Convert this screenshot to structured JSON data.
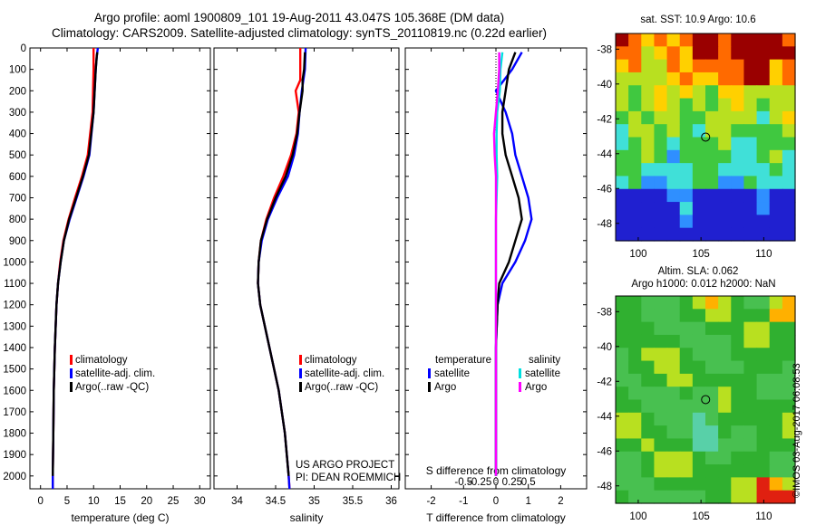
{
  "header": {
    "line1": "Argo profile: aoml 1900809_101 19-Aug-2011 43.047S 105.368E (DM data)",
    "line2": "Climatology: CARS2009. Satellite-adjusted climatology: synTS_20110819.nc (0.22d earlier)"
  },
  "colors": {
    "climatology": "#ff0000",
    "satellite": "#0000ff",
    "argo": "#000000",
    "sal_satellite": "#00e0e0",
    "sal_argo": "#ff00ff"
  },
  "depth_axis": {
    "ticks": [
      0,
      100,
      200,
      300,
      400,
      500,
      600,
      700,
      800,
      900,
      1000,
      1100,
      1200,
      1300,
      1400,
      1500,
      1600,
      1700,
      1800,
      1900,
      2000
    ],
    "tick_labels": [
      "0",
      "100",
      "200",
      "300",
      "400",
      "500",
      "600",
      "700",
      "800",
      "900",
      "1000",
      "1100",
      "1200",
      "1300",
      "1400",
      "1500",
      "1600",
      "1700",
      "1800",
      "1900",
      "2000"
    ],
    "range": [
      0,
      2060
    ]
  },
  "chart_data": [
    {
      "type": "line",
      "xlabel": "temperature (deg C)",
      "xlim": [
        -2,
        32
      ],
      "xticks": [
        0,
        5,
        10,
        15,
        20,
        25,
        30
      ],
      "xtick_labels": [
        "0",
        "5",
        "10",
        "15",
        "20",
        "25",
        "30"
      ],
      "legend": [
        "climatology",
        "satellite-adj. clim.",
        "Argo(..raw -QC)"
      ],
      "series": [
        {
          "name": "climatology",
          "y": [
            0,
            40,
            100,
            300,
            500,
            600,
            700,
            800,
            900,
            1000,
            1100,
            1200,
            1400,
            1600,
            1800,
            2000,
            2060
          ],
          "x": [
            10.0,
            10.0,
            10.0,
            9.8,
            8.9,
            7.8,
            6.5,
            5.3,
            4.3,
            3.7,
            3.3,
            3.0,
            2.7,
            2.5,
            2.4,
            2.3,
            2.3
          ]
        },
        {
          "name": "satellite-adj. clim.",
          "y": [
            0,
            40,
            100,
            300,
            500,
            600,
            700,
            800,
            900,
            1000,
            1100,
            1200,
            1400,
            1600,
            1800,
            2000,
            2060
          ],
          "x": [
            10.8,
            10.6,
            10.4,
            10.0,
            9.2,
            8.1,
            6.8,
            5.5,
            4.4,
            3.8,
            3.3,
            3.0,
            2.7,
            2.5,
            2.4,
            2.3,
            2.3
          ]
        },
        {
          "name": "Argo(..raw -QC)",
          "y": [
            20,
            40,
            100,
            300,
            500,
            600,
            700,
            800,
            900,
            1000,
            1100,
            1200,
            1400,
            1600,
            1800,
            2000
          ],
          "x": [
            10.7,
            10.6,
            10.4,
            10.0,
            9.1,
            8.0,
            6.7,
            5.4,
            4.4,
            3.8,
            3.3,
            3.0,
            2.7,
            2.5,
            2.4,
            2.3
          ]
        }
      ]
    },
    {
      "type": "line",
      "xlabel": "salinity",
      "xlim": [
        33.7,
        36.1
      ],
      "xticks": [
        34,
        34.5,
        35,
        35.5,
        36
      ],
      "xtick_labels": [
        "34",
        "34.5",
        "35",
        "35.5",
        "36"
      ],
      "legend": [
        "climatology",
        "satellite-adj. clim.",
        "Argo(..raw -QC)"
      ],
      "series": [
        {
          "name": "climatology",
          "y": [
            0,
            100,
            150,
            200,
            300,
            400,
            500,
            600,
            700,
            800,
            900,
            1000,
            1100,
            1200,
            1400,
            1600,
            1800,
            2000,
            2060
          ],
          "x": [
            34.82,
            34.82,
            34.82,
            34.76,
            34.8,
            34.77,
            34.7,
            34.6,
            34.48,
            34.38,
            34.31,
            34.28,
            34.27,
            34.3,
            34.42,
            34.54,
            34.62,
            34.67,
            34.68
          ]
        },
        {
          "name": "satellite-adj. clim.",
          "y": [
            0,
            100,
            150,
            200,
            300,
            400,
            500,
            600,
            700,
            800,
            900,
            1000,
            1100,
            1200,
            1400,
            1600,
            1800,
            2000,
            2060
          ],
          "x": [
            34.89,
            34.88,
            34.86,
            34.84,
            34.81,
            34.79,
            34.74,
            34.66,
            34.52,
            34.4,
            34.32,
            34.28,
            34.27,
            34.3,
            34.42,
            34.54,
            34.62,
            34.67,
            34.68
          ]
        },
        {
          "name": "Argo(..raw -QC)",
          "y": [
            20,
            100,
            150,
            200,
            300,
            400,
            500,
            600,
            700,
            800,
            900,
            1000,
            1100,
            1200,
            1400,
            1600,
            1800,
            2000
          ],
          "x": [
            34.88,
            34.87,
            34.85,
            34.85,
            34.81,
            34.78,
            34.72,
            34.63,
            34.5,
            34.39,
            34.31,
            34.28,
            34.27,
            34.3,
            34.42,
            34.54,
            34.62,
            34.67
          ]
        }
      ],
      "annotations": [
        "US ARGO PROJECT",
        "PI: DEAN ROEMMICH"
      ]
    },
    {
      "type": "line",
      "xlabel": "T difference from climatology",
      "xlim": [
        -2.8,
        2.8
      ],
      "xticks": [
        -2,
        -1,
        0,
        1,
        2
      ],
      "xtick_labels": [
        "-2",
        "-1",
        "0",
        "1",
        "2"
      ],
      "top_axis_label": "S difference from climatology",
      "top_ticks": [
        -0.5,
        -0.25,
        0,
        0.25,
        0.5
      ],
      "top_tick_labels": [
        "-0.5",
        "-0.25",
        "0",
        "0.25",
        "0.5"
      ],
      "legend_headers": [
        "temperature",
        "salinity"
      ],
      "legend": [
        "satellite",
        "Argo",
        "satellite",
        "Argo"
      ],
      "series": [
        {
          "name": "satellite",
          "group": "temperature",
          "y": [
            20,
            100,
            200,
            300,
            400,
            500,
            600,
            700,
            800,
            900,
            1000,
            1100,
            1200,
            1400,
            1600,
            1800,
            2000
          ],
          "x": [
            0.8,
            0.5,
            0.0,
            0.3,
            0.5,
            0.6,
            0.8,
            1.0,
            1.1,
            0.9,
            0.6,
            0.2,
            0.05,
            0.0,
            0.0,
            0.0,
            0.0
          ]
        },
        {
          "name": "Argo",
          "group": "temperature",
          "y": [
            20,
            100,
            200,
            300,
            400,
            500,
            600,
            700,
            800,
            900,
            1000,
            1100,
            1200,
            1400,
            1600,
            1800,
            2000
          ],
          "x": [
            0.6,
            0.4,
            0.3,
            0.2,
            0.2,
            0.3,
            0.5,
            0.7,
            0.8,
            0.6,
            0.4,
            0.1,
            0.05,
            0.0,
            0.0,
            0.0,
            0.0
          ]
        },
        {
          "name": "satellite",
          "group": "salinity",
          "y": [
            20,
            100,
            200,
            300,
            400,
            500,
            600,
            700,
            800,
            900,
            1000,
            1100,
            1200,
            1400,
            1600,
            1800,
            2000
          ],
          "x": [
            0.1,
            0.07,
            0.06,
            0.02,
            0.01,
            0.01,
            0.02,
            0.01,
            0.0,
            0.0,
            0.0,
            0.0,
            0.0,
            0.0,
            0.0,
            0.0,
            0.0
          ]
        },
        {
          "name": "Argo",
          "group": "salinity",
          "y": [
            20,
            100,
            200,
            300,
            400,
            500,
            600,
            700,
            800,
            900,
            1000,
            1100,
            1200,
            1400,
            1600,
            1800,
            2000
          ],
          "x": [
            0.05,
            0.05,
            0.03,
            0.0,
            -0.03,
            -0.02,
            0.0,
            0.0,
            0.0,
            0.0,
            0.0,
            0.0,
            0.0,
            0.0,
            0.0,
            0.0,
            0.0
          ]
        }
      ]
    },
    {
      "type": "heatmap",
      "title": "sat. SST: 10.9 Argo: 10.6",
      "xticks": [
        100,
        105,
        110
      ],
      "xtick_labels": [
        "100",
        "105",
        "110"
      ],
      "yticks": [
        -38,
        -40,
        -42,
        -44,
        -46,
        -48
      ],
      "ytick_labels": [
        "-38",
        "-40",
        "-42",
        "-44",
        "-46",
        "-48"
      ],
      "xlim": [
        98.2,
        112.5
      ],
      "ylim": [
        -49.0,
        -37.1
      ],
      "marker": {
        "lon": 105.368,
        "lat": -43.047
      }
    },
    {
      "type": "heatmap",
      "title": "Altim. SLA: 0.062",
      "subtitle": "Argo h1000: 0.012 h2000: NaN",
      "xticks": [
        100,
        105,
        110
      ],
      "xtick_labels": [
        "100",
        "105",
        "110"
      ],
      "yticks": [
        -38,
        -40,
        -42,
        -44,
        -46,
        -48
      ],
      "ytick_labels": [
        "-38",
        "-40",
        "-42",
        "-44",
        "-46",
        "-48"
      ],
      "xlim": [
        98.2,
        112.5
      ],
      "ylim": [
        -49.0,
        -37.1
      ],
      "marker": {
        "lon": 105.368,
        "lat": -43.047
      }
    }
  ],
  "footer": {
    "stamp": "©IMOS 03-Aug-2017 06:08:53"
  }
}
